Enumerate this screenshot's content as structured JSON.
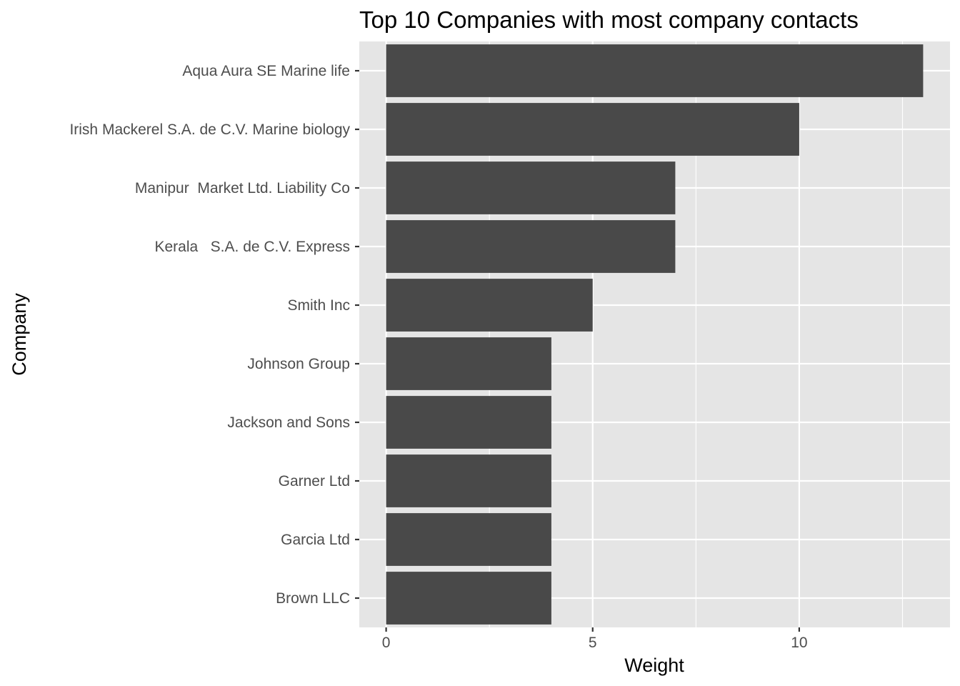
{
  "chart_data": {
    "type": "bar",
    "orientation": "horizontal",
    "title": "Top 10 Companies with most company contacts",
    "xlabel": "Weight",
    "ylabel": "Company",
    "xlim": [
      -0.65,
      13.65
    ],
    "x_ticks": [
      0,
      5,
      10
    ],
    "grid": true,
    "legend": "none",
    "bar_color": "#494949",
    "panel_color": "#e5e5e5",
    "categories": [
      "Aqua Aura SE Marine life",
      "Irish Mackerel S.A. de C.V. Marine biology",
      "Manipur  Market Ltd. Liability Co",
      "Kerala   S.A. de C.V. Express",
      "Smith Inc",
      "Johnson Group",
      "Jackson and Sons",
      "Garner Ltd",
      "Garcia Ltd",
      "Brown LLC"
    ],
    "values": [
      13,
      10,
      7,
      7,
      5,
      4,
      4,
      4,
      4,
      4
    ]
  }
}
